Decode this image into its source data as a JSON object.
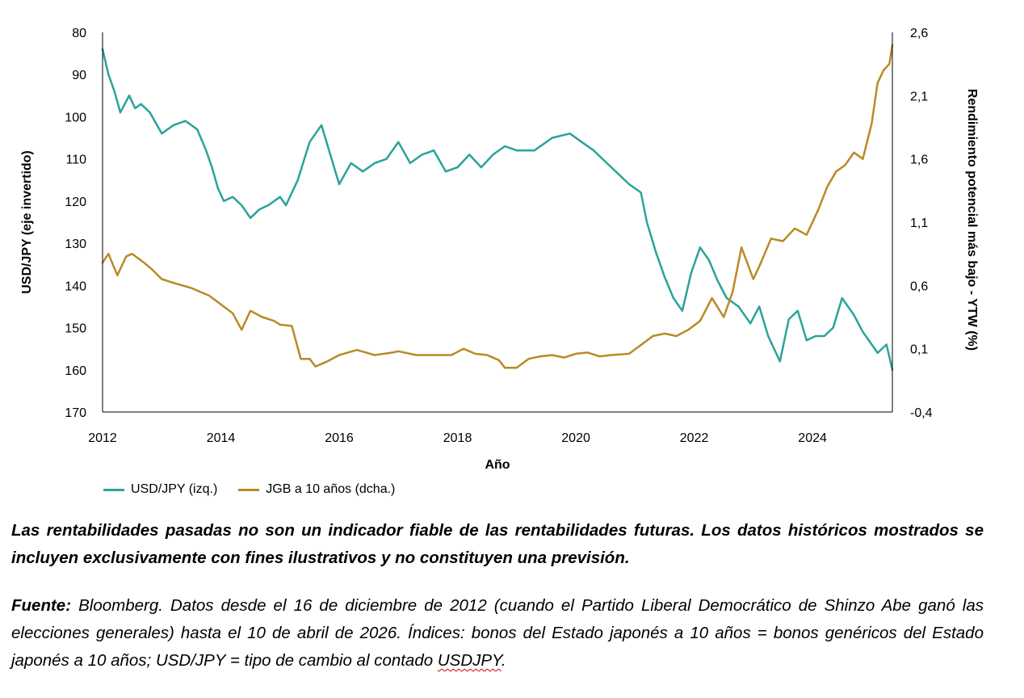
{
  "chart_data": {
    "type": "line",
    "xlabel": "Año",
    "x_ticks": [
      "2012",
      "2014",
      "2016",
      "2018",
      "2020",
      "2022",
      "2024"
    ],
    "xlim": [
      2012,
      2025.35
    ],
    "left_axis": {
      "label": "USD/JPY (eje invertido)",
      "inverted": true,
      "lim": [
        80,
        170
      ],
      "ticks": [
        "80",
        "90",
        "100",
        "110",
        "120",
        "130",
        "140",
        "150",
        "160",
        "170"
      ]
    },
    "right_axis": {
      "label": "Rendimiento potencial más bajo - YTW (%)",
      "lim": [
        -0.4,
        2.6
      ],
      "ticks": [
        "2,6",
        "2,1",
        "1,6",
        "1,1",
        "0,6",
        "0,1",
        "-0,4"
      ]
    },
    "grid": false,
    "legend_position": "bottom-left",
    "series": [
      {
        "name": "USD/JPY (izq.)",
        "axis": "left",
        "color": "#2aa39a",
        "x": [
          2012.0,
          2012.1,
          2012.2,
          2012.3,
          2012.45,
          2012.55,
          2012.65,
          2012.8,
          2013.0,
          2013.2,
          2013.4,
          2013.6,
          2013.75,
          2013.85,
          2013.95,
          2014.05,
          2014.2,
          2014.35,
          2014.5,
          2014.65,
          2014.8,
          2015.0,
          2015.1,
          2015.3,
          2015.5,
          2015.7,
          2015.85,
          2016.0,
          2016.2,
          2016.4,
          2016.6,
          2016.8,
          2017.0,
          2017.2,
          2017.4,
          2017.6,
          2017.8,
          2018.0,
          2018.2,
          2018.4,
          2018.6,
          2018.8,
          2019.0,
          2019.3,
          2019.6,
          2019.9,
          2020.1,
          2020.3,
          2020.6,
          2020.9,
          2021.1,
          2021.2,
          2021.35,
          2021.5,
          2021.65,
          2021.8,
          2021.95,
          2022.1,
          2022.25,
          2022.4,
          2022.55,
          2022.75,
          2022.95,
          2023.1,
          2023.25,
          2023.45,
          2023.6,
          2023.75,
          2023.9,
          2024.05,
          2024.2,
          2024.35,
          2024.5,
          2024.7,
          2024.85,
          2025.0,
          2025.1,
          2025.25,
          2025.35
        ],
        "values": [
          84,
          90,
          94,
          99,
          95,
          98,
          97,
          99,
          104,
          102,
          101,
          103,
          108,
          112,
          117,
          120,
          119,
          121,
          124,
          122,
          121,
          119,
          121,
          115,
          106,
          102,
          109,
          116,
          111,
          113,
          111,
          110,
          106,
          111,
          109,
          108,
          113,
          112,
          109,
          112,
          109,
          107,
          108,
          108,
          105,
          104,
          106,
          108,
          112,
          116,
          118,
          125,
          132,
          138,
          143,
          146,
          137,
          131,
          134,
          139,
          143,
          145,
          149,
          145,
          152,
          158,
          148,
          146,
          153,
          152,
          152,
          150,
          143,
          147,
          151,
          154,
          156,
          154,
          160
        ]
      },
      {
        "name": "JGB a 10 años (dcha.)",
        "axis": "right",
        "color": "#b98a26",
        "x": [
          2012.0,
          2012.1,
          2012.25,
          2012.4,
          2012.5,
          2012.7,
          2012.85,
          2013.0,
          2013.2,
          2013.5,
          2013.8,
          2014.0,
          2014.2,
          2014.35,
          2014.5,
          2014.7,
          2014.9,
          2015.0,
          2015.2,
          2015.35,
          2015.5,
          2015.6,
          2015.8,
          2016.0,
          2016.3,
          2016.6,
          2016.9,
          2017.0,
          2017.3,
          2017.6,
          2017.9,
          2018.1,
          2018.3,
          2018.5,
          2018.7,
          2018.8,
          2019.0,
          2019.2,
          2019.4,
          2019.6,
          2019.8,
          2020.0,
          2020.2,
          2020.4,
          2020.6,
          2020.9,
          2021.1,
          2021.3,
          2021.5,
          2021.7,
          2021.9,
          2022.1,
          2022.3,
          2022.5,
          2022.65,
          2022.8,
          2023.0,
          2023.1,
          2023.3,
          2023.5,
          2023.7,
          2023.9,
          2024.1,
          2024.25,
          2024.4,
          2024.55,
          2024.7,
          2024.85,
          2025.0,
          2025.1,
          2025.2,
          2025.3,
          2025.35
        ],
        "values": [
          0.78,
          0.85,
          0.68,
          0.83,
          0.85,
          0.78,
          0.72,
          0.65,
          0.62,
          0.58,
          0.52,
          0.45,
          0.38,
          0.25,
          0.4,
          0.35,
          0.32,
          0.29,
          0.28,
          0.02,
          0.02,
          -0.04,
          0.0,
          0.05,
          0.09,
          0.05,
          0.07,
          0.08,
          0.05,
          0.05,
          0.05,
          0.1,
          0.06,
          0.05,
          0.01,
          -0.05,
          -0.05,
          0.02,
          0.04,
          0.05,
          0.03,
          0.06,
          0.07,
          0.04,
          0.05,
          0.06,
          0.13,
          0.2,
          0.22,
          0.2,
          0.25,
          0.32,
          0.5,
          0.35,
          0.55,
          0.9,
          0.65,
          0.75,
          0.97,
          0.95,
          1.05,
          1.0,
          1.2,
          1.38,
          1.5,
          1.55,
          1.65,
          1.6,
          1.88,
          2.2,
          2.3,
          2.35,
          2.5
        ]
      }
    ]
  },
  "legend": {
    "usd": "USD/JPY (izq.)",
    "jgb": "JGB a 10 años (dcha.)"
  },
  "notes": {
    "disclaimer": "Las rentabilidades pasadas no son un indicador fiable de las rentabilidades futuras. Los datos históricos mostrados se incluyen exclusivamente con fines ilustrativos y no constituyen una previsión.",
    "source_label": "Fuente:",
    "source_text": " Bloomberg. Datos desde el 16 de diciembre de 2012 (cuando el Partido Liberal Democrático de Shinzo Abe ganó las elecciones generales) hasta el 10 de abril de 2026. Índices: bonos del Estado japonés a 10 años = bonos genéricos del Estado japonés a 10 años; USD/JPY = tipo de cambio al contado ",
    "source_ticker": "USDJPY",
    "source_end": "."
  }
}
